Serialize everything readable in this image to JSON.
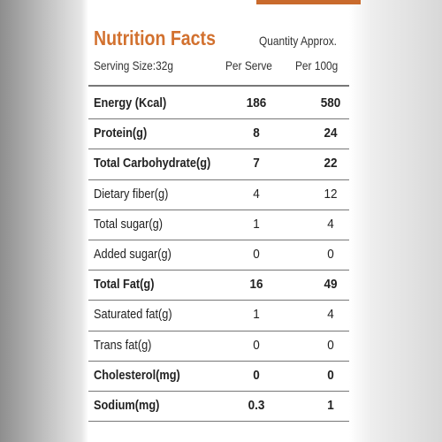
{
  "header": {
    "title": "Nutrition Facts",
    "quantity_note": "Quantity Approx.",
    "serving_size": "Serving Size:32g",
    "col_serve": "Per Serve",
    "col_100g": "Per 100g"
  },
  "table": {
    "rows": [
      {
        "label": "Energy (Kcal)",
        "per_serve": 186,
        "per_100g": 580,
        "bold": true
      },
      {
        "label": "Protein(g)",
        "per_serve": 8,
        "per_100g": 24,
        "bold": true
      },
      {
        "label": "Total Carbohydrate(g)",
        "per_serve": 7,
        "per_100g": 22,
        "bold": true
      },
      {
        "label": "Dietary fiber(g)",
        "per_serve": 4,
        "per_100g": 12,
        "bold": false
      },
      {
        "label": "Total sugar(g)",
        "per_serve": 1,
        "per_100g": 4,
        "bold": false
      },
      {
        "label": "Added sugar(g)",
        "per_serve": 0,
        "per_100g": 0,
        "bold": false
      },
      {
        "label": "Total Fat(g)",
        "per_serve": 16,
        "per_100g": 49,
        "bold": true
      },
      {
        "label": "Saturated fat(g)",
        "per_serve": 1,
        "per_100g": 4,
        "bold": false
      },
      {
        "label": "Trans fat(g)",
        "per_serve": 0,
        "per_100g": 0,
        "bold": false
      },
      {
        "label": "Cholesterol(mg)",
        "per_serve": 0,
        "per_100g": 0,
        "bold": true
      },
      {
        "label": "Sodium(mg)",
        "per_serve": 0.3,
        "per_100g": 1,
        "bold": true
      }
    ]
  }
}
